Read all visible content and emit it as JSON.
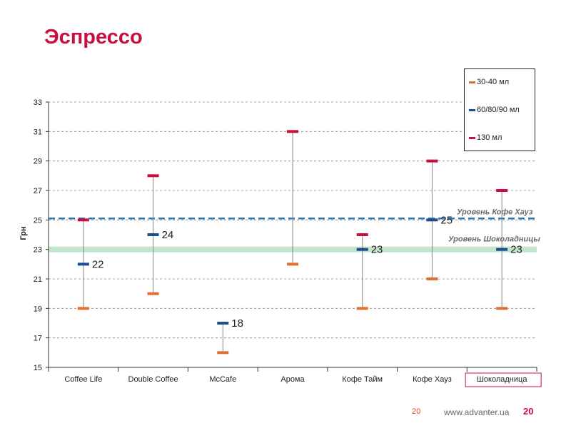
{
  "page": {
    "title": "Эспрессо",
    "footer_page_small": "20",
    "footer_url": "www.advanter.ua",
    "footer_page_big": "20"
  },
  "colors": {
    "title": "#c8103e",
    "s30_40": "#e07030",
    "s60_90": "#1f4e8c",
    "s130": "#c8103e",
    "ref_line": "#2e75b6",
    "ref_band": "#c3e6cb",
    "highlight_box": "#c8103e"
  },
  "chart_data": {
    "type": "range",
    "title": "Эспрессо",
    "ylabel": "Грн",
    "xlabel": "",
    "ylim": [
      15,
      33
    ],
    "yticks": [
      15,
      17,
      19,
      21,
      23,
      25,
      27,
      29,
      31,
      33
    ],
    "grid": true,
    "legend_position": "top-right",
    "categories": [
      "Coffee Life",
      "Double Coffee",
      "McCafe",
      "Арома",
      "Кофе Тайм",
      "Кофе Хауз",
      "Шоколадница"
    ],
    "highlighted_category": "Шоколадница",
    "series": [
      {
        "name": "30-40 мл",
        "color_key": "s30_40",
        "values": [
          19,
          20,
          16,
          22,
          19,
          21,
          19
        ]
      },
      {
        "name": "60/80/90 мл",
        "color_key": "s60_90",
        "values": [
          22,
          24,
          18,
          null,
          23,
          25,
          23
        ],
        "labeled": true
      },
      {
        "name": "130 мл",
        "color_key": "s130",
        "values": [
          25,
          28,
          null,
          31,
          24,
          29,
          27
        ]
      }
    ],
    "reference_lines": [
      {
        "label": "Уровень Кофе Хауз",
        "value": 25.1,
        "style": "dashed"
      },
      {
        "label": "Уровень Шоколадницы",
        "value": 23,
        "style": "band"
      }
    ]
  }
}
